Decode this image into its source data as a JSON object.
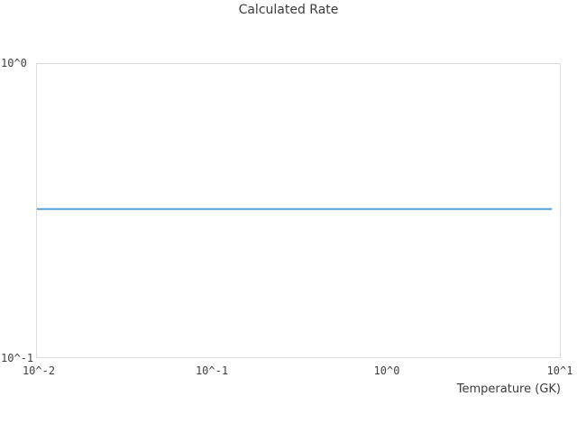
{
  "title": "Calculated Rate",
  "colors": {
    "line": "#55a0d8",
    "plot_border": "#dcdcdc",
    "title_text": "#3b3b3b",
    "tick_text": "#404040"
  },
  "chart_data": {
    "type": "line",
    "title": "Calculated Rate",
    "xlabel": "Temperature (GK)",
    "ylabel": "",
    "x_scale": "log",
    "y_scale": "log",
    "xlim": [
      0.01,
      10
    ],
    "ylim": [
      0.1,
      1
    ],
    "x_tick_labels": [
      "10^-2",
      "10^-1",
      "10^0",
      "10^1"
    ],
    "y_tick_labels": [
      "10^-1",
      "10^0"
    ],
    "grid": false,
    "legend": false,
    "series": [
      {
        "name": "Calculated Rate",
        "x": [
          0.01,
          0.1,
          1.0,
          9.0
        ],
        "y": [
          0.32,
          0.32,
          0.32,
          0.32
        ]
      }
    ]
  }
}
